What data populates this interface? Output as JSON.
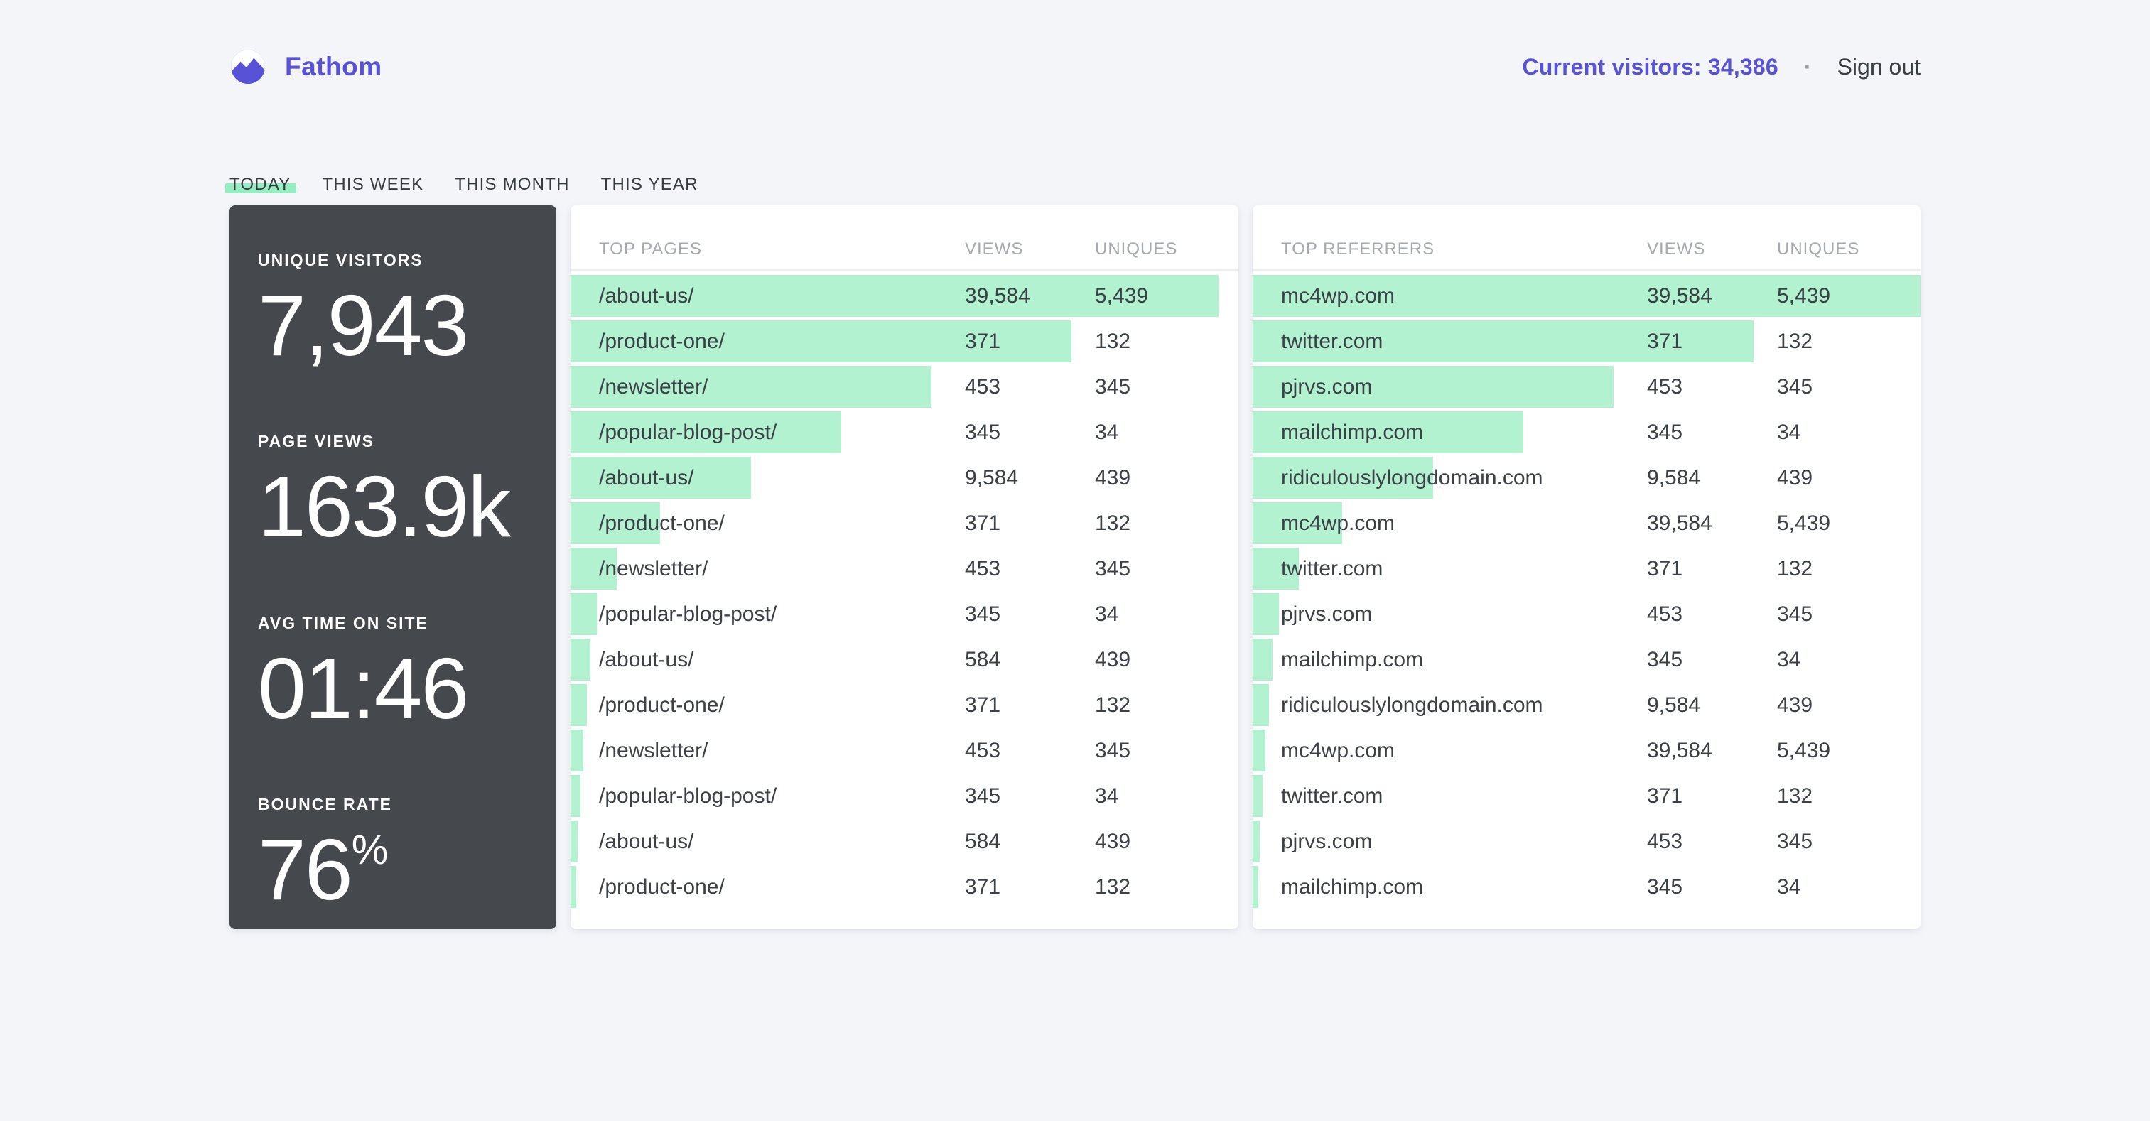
{
  "colors": {
    "accent": "#5852D6",
    "mint_bar": "#B2F2D0",
    "tab_highlight": "#96EDC1",
    "dark_card": "#45484D",
    "page_background": "#F3F5F9"
  },
  "brand": {
    "name": "Fathom",
    "logo_icon": "mountain-in-circle"
  },
  "header": {
    "current_visitors": "Current visitors: 34,386",
    "separator": "·",
    "sign_out": "Sign out"
  },
  "tabs": [
    {
      "label": "TODAY",
      "active": true
    },
    {
      "label": "THIS WEEK",
      "active": false
    },
    {
      "label": "THIS MONTH",
      "active": false
    },
    {
      "label": "THIS YEAR",
      "active": false
    }
  ],
  "stats": [
    {
      "label": "UNIQUE VISITORS",
      "value": "7,943",
      "unit": ""
    },
    {
      "label": "PAGE VIEWS",
      "value": "163.9k",
      "unit": ""
    },
    {
      "label": "AVG TIME ON SITE",
      "value": "01:46",
      "unit": ""
    },
    {
      "label": "BOUNCE RATE",
      "value": "76",
      "unit": "%"
    }
  ],
  "top_pages": {
    "title": "TOP PAGES",
    "col_views": "VIEWS",
    "col_uniques": "UNIQUES",
    "rows": [
      {
        "label": "/about-us/",
        "views": "39,584",
        "uniques": "5,439",
        "bar_pct": 97
      },
      {
        "label": "/product-one/",
        "views": "371",
        "uniques": "132",
        "bar_pct": 75
      },
      {
        "label": "/newsletter/",
        "views": "453",
        "uniques": "345",
        "bar_pct": 54
      },
      {
        "label": "/popular-blog-post/",
        "views": "345",
        "uniques": "34",
        "bar_pct": 40.5
      },
      {
        "label": "/about-us/",
        "views": "9,584",
        "uniques": "439",
        "bar_pct": 27
      },
      {
        "label": "/product-one/",
        "views": "371",
        "uniques": "132",
        "bar_pct": 13.4
      },
      {
        "label": "/newsletter/",
        "views": "453",
        "uniques": "345",
        "bar_pct": 6.9
      },
      {
        "label": "/popular-blog-post/",
        "views": "345",
        "uniques": "34",
        "bar_pct": 3.9
      },
      {
        "label": "/about-us/",
        "views": "584",
        "uniques": "439",
        "bar_pct": 3.0
      },
      {
        "label": "/product-one/",
        "views": "371",
        "uniques": "132",
        "bar_pct": 2.4
      },
      {
        "label": "/newsletter/",
        "views": "453",
        "uniques": "345",
        "bar_pct": 1.9
      },
      {
        "label": "/popular-blog-post/",
        "views": "345",
        "uniques": "34",
        "bar_pct": 1.5
      },
      {
        "label": "/about-us/",
        "views": "584",
        "uniques": "439",
        "bar_pct": 1.1
      },
      {
        "label": "/product-one/",
        "views": "371",
        "uniques": "132",
        "bar_pct": 0.9
      }
    ]
  },
  "top_referrers": {
    "title": "TOP REFERRERS",
    "col_views": "VIEWS",
    "col_uniques": "UNIQUES",
    "rows": [
      {
        "label": "mc4wp.com",
        "views": "39,584",
        "uniques": "5,439",
        "bar_pct": 100
      },
      {
        "label": "twitter.com",
        "views": "371",
        "uniques": "132",
        "bar_pct": 75
      },
      {
        "label": "pjrvs.com",
        "views": "453",
        "uniques": "345",
        "bar_pct": 54
      },
      {
        "label": "mailchimp.com",
        "views": "345",
        "uniques": "34",
        "bar_pct": 40.5
      },
      {
        "label": "ridiculouslylongdomain.com",
        "views": "9,584",
        "uniques": "439",
        "bar_pct": 27
      },
      {
        "label": "mc4wp.com",
        "views": "39,584",
        "uniques": "5,439",
        "bar_pct": 13.4
      },
      {
        "label": "twitter.com",
        "views": "371",
        "uniques": "132",
        "bar_pct": 6.9
      },
      {
        "label": "pjrvs.com",
        "views": "453",
        "uniques": "345",
        "bar_pct": 3.9
      },
      {
        "label": "mailchimp.com",
        "views": "345",
        "uniques": "34",
        "bar_pct": 3.0
      },
      {
        "label": "ridiculouslylongdomain.com",
        "views": "9,584",
        "uniques": "439",
        "bar_pct": 2.4
      },
      {
        "label": "mc4wp.com",
        "views": "39,584",
        "uniques": "5,439",
        "bar_pct": 1.9
      },
      {
        "label": "twitter.com",
        "views": "371",
        "uniques": "132",
        "bar_pct": 1.5
      },
      {
        "label": "pjrvs.com",
        "views": "453",
        "uniques": "345",
        "bar_pct": 1.1
      },
      {
        "label": "mailchimp.com",
        "views": "345",
        "uniques": "34",
        "bar_pct": 0.9
      }
    ]
  }
}
